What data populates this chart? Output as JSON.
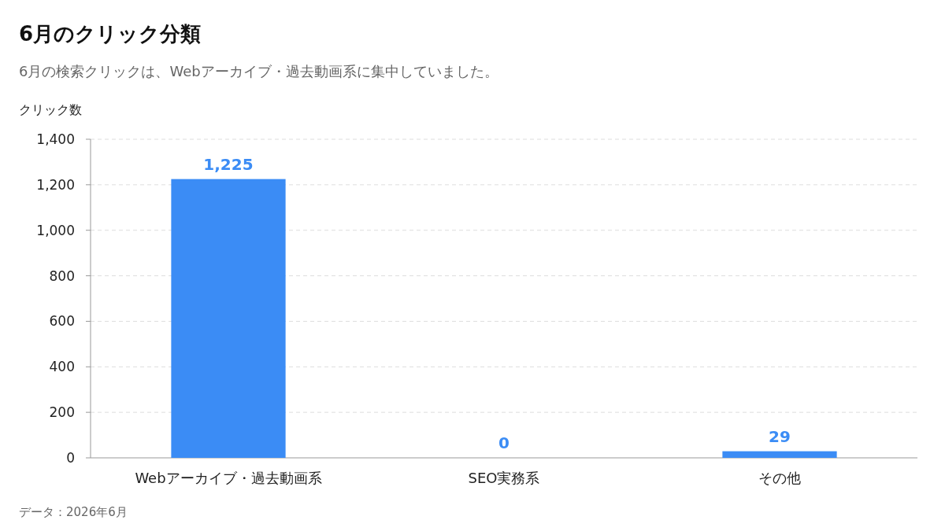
{
  "chart_data": {
    "type": "bar",
    "title": "6月のクリック分類",
    "subtitle": "6月の検索クリックは、Webアーカイブ・過去動画系に集中していました。",
    "ylabel": "クリック数",
    "categories": [
      "Webアーカイブ・過去動画系",
      "SEO実務系",
      "その他"
    ],
    "values": [
      1225,
      0,
      29
    ],
    "value_labels": [
      "1,225",
      "0",
      "29"
    ],
    "color": "#3b8cf5",
    "ylim": [
      0,
      1400
    ],
    "yticks": [
      0,
      {
        "value": 200,
        "label": "200"
      },
      {
        "value": 400,
        "label": "400"
      },
      {
        "value": 600,
        "label": "600"
      },
      {
        "value": 800,
        "label": "800"
      },
      {
        "value": 1000,
        "label": "1,000"
      },
      {
        "value": 1200,
        "label": "1,200"
      },
      {
        "value": 1400,
        "label": "1,400"
      }
    ],
    "grid": "y",
    "annotations": [
      "データ：2026年6月"
    ]
  }
}
